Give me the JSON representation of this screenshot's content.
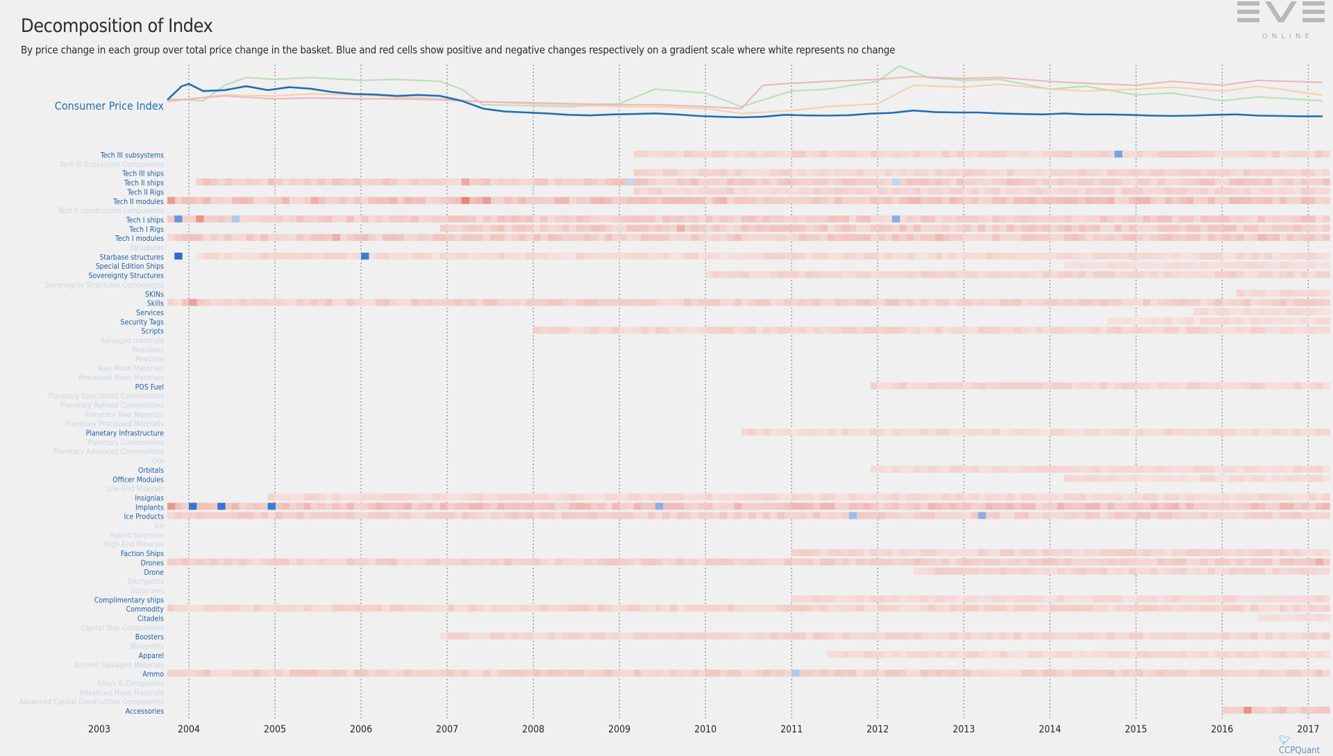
{
  "header": {
    "title": "Decomposition of Index",
    "subtitle": "By price change in each group over total price change in the basket. Blue and red cells show positive and negative changes respectively on a gradient scale where white represents no change"
  },
  "logo": {
    "text": "EVE",
    "sub": "ONLINE"
  },
  "brand": {
    "text": "CCPQuant",
    "icon": "twitter-bird-icon"
  },
  "colors": {
    "background": "#f0f0f0",
    "cpi_line": "#1f6fb5",
    "label_active": "#1f5fa5",
    "label_faded": "#c9d6e4",
    "positive_cell": "#2a6fcf",
    "negative_cell": "#e0564a",
    "faint_negative": "#f4dcd8"
  },
  "chart_data": [
    {
      "type": "line",
      "title": "",
      "label": "Consumer Price Index",
      "x_range": [
        "2003-10",
        "2017-03"
      ],
      "series": [
        {
          "name": "Consumer Price Index",
          "color": "#1f6fb5",
          "x": [
            "2003-10",
            "2003-12",
            "2004-01",
            "2004-03",
            "2004-06",
            "2004-09",
            "2004-12",
            "2005-03",
            "2005-06",
            "2005-09",
            "2005-12",
            "2006-03",
            "2006-06",
            "2006-09",
            "2006-12",
            "2007-03",
            "2007-06",
            "2007-09",
            "2007-12",
            "2008-03",
            "2008-06",
            "2008-09",
            "2008-12",
            "2009-03",
            "2009-06",
            "2009-09",
            "2009-12",
            "2010-03",
            "2010-06",
            "2010-09",
            "2010-12",
            "2011-03",
            "2011-06",
            "2011-09",
            "2011-12",
            "2012-03",
            "2012-06",
            "2012-09",
            "2012-12",
            "2013-03",
            "2013-06",
            "2013-09",
            "2013-12",
            "2014-03",
            "2014-06",
            "2014-09",
            "2014-12",
            "2015-03",
            "2015-06",
            "2015-09",
            "2015-12",
            "2016-03",
            "2016-06",
            "2016-09",
            "2016-12",
            "2017-03"
          ],
          "y": [
            0.15,
            0.85,
            0.97,
            0.6,
            0.65,
            0.85,
            0.65,
            0.8,
            0.72,
            0.55,
            0.45,
            0.42,
            0.35,
            0.4,
            0.35,
            0.1,
            -0.3,
            -0.45,
            -0.5,
            -0.55,
            -0.62,
            -0.65,
            -0.6,
            -0.58,
            -0.55,
            -0.6,
            -0.68,
            -0.72,
            -0.75,
            -0.72,
            -0.62,
            -0.65,
            -0.66,
            -0.64,
            -0.56,
            -0.52,
            -0.4,
            -0.48,
            -0.5,
            -0.5,
            -0.55,
            -0.58,
            -0.6,
            -0.55,
            -0.6,
            -0.6,
            -0.62,
            -0.66,
            -0.68,
            -0.66,
            -0.62,
            -0.6,
            -0.66,
            -0.68,
            -0.7,
            -0.7
          ]
        },
        {
          "name": "",
          "color": "#b6dbb3",
          "x": [
            "2003-10",
            "2004-03",
            "2004-06",
            "2004-09",
            "2005-01",
            "2005-06",
            "2006-01",
            "2006-06",
            "2006-12",
            "2007-03",
            "2007-06",
            "2008-01",
            "2008-06",
            "2009-01",
            "2009-06",
            "2010-01",
            "2010-06",
            "2011-01",
            "2011-06",
            "2012-01",
            "2012-04",
            "2012-08",
            "2013-01",
            "2013-06",
            "2014-01",
            "2014-06",
            "2015-01",
            "2015-06",
            "2016-01",
            "2016-06",
            "2017-03"
          ],
          "y": [
            0.2,
            0.1,
            0.9,
            1.3,
            1.2,
            1.3,
            1.15,
            1.2,
            1.1,
            0.7,
            -0.1,
            -0.15,
            -0.2,
            -0.05,
            0.7,
            0.5,
            -0.2,
            0.6,
            0.7,
            1.1,
            1.9,
            1.3,
            1.15,
            1.2,
            0.7,
            0.85,
            0.4,
            0.5,
            0.1,
            0.3,
            0.1
          ]
        },
        {
          "name": "",
          "color": "#f7cda5",
          "x": [
            "2003-10",
            "2004-06",
            "2005-01",
            "2005-06",
            "2006-01",
            "2006-06",
            "2006-12",
            "2007-06",
            "2008-01",
            "2008-06",
            "2009-01",
            "2009-06",
            "2010-01",
            "2010-06",
            "2011-01",
            "2011-06",
            "2012-01",
            "2012-06",
            "2013-01",
            "2013-06",
            "2014-01",
            "2014-06",
            "2015-01",
            "2015-06",
            "2016-01",
            "2016-06",
            "2017-03"
          ],
          "y": [
            0.05,
            0.4,
            0.35,
            0.45,
            0.4,
            0.3,
            0.2,
            0.05,
            -0.05,
            -0.1,
            -0.2,
            -0.2,
            -0.3,
            -0.55,
            -0.4,
            -0.2,
            -0.05,
            0.9,
            0.8,
            0.95,
            0.7,
            0.6,
            0.7,
            0.8,
            0.6,
            0.85,
            0.4
          ]
        },
        {
          "name": "",
          "color": "#ebb3b6",
          "x": [
            "2003-10",
            "2004-06",
            "2005-01",
            "2005-06",
            "2006-01",
            "2006-06",
            "2006-12",
            "2007-06",
            "2008-01",
            "2008-06",
            "2009-01",
            "2009-06",
            "2010-01",
            "2010-06",
            "2010-09",
            "2011-01",
            "2011-06",
            "2012-01",
            "2012-06",
            "2013-01",
            "2013-06",
            "2014-01",
            "2014-06",
            "2015-01",
            "2015-06",
            "2016-01",
            "2016-06",
            "2017-03"
          ],
          "y": [
            0.1,
            0.35,
            0.2,
            0.25,
            0.2,
            0.2,
            0.15,
            0.05,
            0.0,
            -0.05,
            -0.1,
            -0.1,
            -0.2,
            -0.3,
            0.9,
            1.0,
            1.1,
            1.2,
            1.35,
            1.25,
            1.3,
            1.1,
            1.0,
            0.9,
            1.1,
            0.9,
            1.15,
            1.05
          ]
        }
      ]
    },
    {
      "type": "heatmap",
      "title": "",
      "x_ticks": [
        "2003",
        "2004",
        "2005",
        "2006",
        "2007",
        "2008",
        "2009",
        "2010",
        "2011",
        "2012",
        "2013",
        "2014",
        "2015",
        "2016",
        "2017"
      ],
      "x_range": [
        "2003-10",
        "2017-03"
      ],
      "scale_note": "blue = positive, red = negative, white = no change",
      "rows": [
        {
          "label": "Tech III subsystems",
          "active": true,
          "start": "2009-03",
          "end": "2017-03",
          "intensity": 0.15,
          "spikes": [
            {
              "x": "2014-10",
              "v": 0.6
            }
          ]
        },
        {
          "label": "Tech III Subsystem Components",
          "active": false
        },
        {
          "label": "Tech III ships",
          "active": true,
          "start": "2009-03",
          "end": "2017-03",
          "intensity": 0.15,
          "spikes": []
        },
        {
          "label": "Tech II ships",
          "active": true,
          "start": "2004-02",
          "end": "2017-03",
          "intensity": 0.2,
          "spikes": [
            {
              "x": "2007-03",
              "v": -0.45
            },
            {
              "x": "2009-02",
              "v": 0.2
            },
            {
              "x": "2012-03",
              "v": 0.2
            }
          ]
        },
        {
          "label": "Tech II Rigs",
          "active": true,
          "start": "2009-03",
          "end": "2017-03",
          "intensity": 0.15,
          "spikes": []
        },
        {
          "label": "Tech II modules",
          "active": true,
          "start": "2003-10",
          "end": "2017-03",
          "intensity": 0.25,
          "spikes": [
            {
              "x": "2003-10",
              "v": -0.55
            },
            {
              "x": "2005-06",
              "v": -0.4
            },
            {
              "x": "2007-03",
              "v": -0.7
            },
            {
              "x": "2007-06",
              "v": -0.55
            }
          ]
        },
        {
          "label": "Tech II construction components",
          "active": false
        },
        {
          "label": "Tech I ships",
          "active": true,
          "start": "2003-10",
          "end": "2017-03",
          "intensity": 0.2,
          "spikes": [
            {
              "x": "2003-11",
              "v": 0.7
            },
            {
              "x": "2004-02",
              "v": -0.6
            },
            {
              "x": "2004-07",
              "v": 0.3
            },
            {
              "x": "2012-03",
              "v": 0.5
            }
          ]
        },
        {
          "label": "Tech I Rigs",
          "active": true,
          "start": "2006-12",
          "end": "2017-03",
          "intensity": 0.2,
          "spikes": [
            {
              "x": "2009-09",
              "v": -0.4
            }
          ]
        },
        {
          "label": "Tech I modules",
          "active": true,
          "start": "2003-10",
          "end": "2017-03",
          "intensity": 0.2,
          "spikes": [
            {
              "x": "2005-09",
              "v": -0.4
            },
            {
              "x": "2012-09",
              "v": -0.35
            },
            {
              "x": "2016-06",
              "v": -0.35
            }
          ]
        },
        {
          "label": "Structures",
          "active": false
        },
        {
          "label": "Starbase structures",
          "active": true,
          "start": "2004-02",
          "end": "2017-03",
          "intensity": 0.12,
          "spikes": [
            {
              "x": "2003-11",
              "v": 1.0
            },
            {
              "x": "2006-01",
              "v": 0.9
            }
          ]
        },
        {
          "label": "Special Edition Ships",
          "active": true,
          "start": "2014-03",
          "end": "2017-03",
          "intensity": 0.1,
          "spikes": []
        },
        {
          "label": "Sovereignty Structures",
          "active": true,
          "start": "2010-01",
          "end": "2017-03",
          "intensity": 0.15,
          "spikes": []
        },
        {
          "label": "Sovereignty Structures Components",
          "active": false
        },
        {
          "label": "SKINs",
          "active": true,
          "start": "2016-03",
          "end": "2017-03",
          "intensity": 0.12,
          "spikes": []
        },
        {
          "label": "Skills",
          "active": true,
          "start": "2003-10",
          "end": "2017-03",
          "intensity": 0.18,
          "spikes": [
            {
              "x": "2004-01",
              "v": -0.5
            }
          ]
        },
        {
          "label": "Services",
          "active": true,
          "start": "2015-09",
          "end": "2017-03",
          "intensity": 0.1,
          "spikes": []
        },
        {
          "label": "Security Tags",
          "active": true,
          "start": "2014-09",
          "end": "2017-03",
          "intensity": 0.1,
          "spikes": []
        },
        {
          "label": "Scripts",
          "active": true,
          "start": "2008-01",
          "end": "2017-03",
          "intensity": 0.15,
          "spikes": []
        },
        {
          "label": "Salvaged materials",
          "active": false
        },
        {
          "label": "Reactions",
          "active": false
        },
        {
          "label": "Reaction",
          "active": false
        },
        {
          "label": "Raw Moon Materials",
          "active": false
        },
        {
          "label": "Processed Moon Materials",
          "active": false
        },
        {
          "label": "POS Fuel",
          "active": true,
          "start": "2011-12",
          "end": "2017-03",
          "intensity": 0.15,
          "spikes": []
        },
        {
          "label": "Planetary Specialized Commodities",
          "active": false
        },
        {
          "label": "Planetary Refined Commodities",
          "active": false
        },
        {
          "label": "Planetary Raw Materials",
          "active": false
        },
        {
          "label": "Planetary Processed Materials",
          "active": false
        },
        {
          "label": "Planetary Infrastructure",
          "active": true,
          "start": "2010-06",
          "end": "2017-03",
          "intensity": 0.12,
          "spikes": []
        },
        {
          "label": "Planetary Commodities",
          "active": false
        },
        {
          "label": "Planetary Advanced Commodities",
          "active": false
        },
        {
          "label": "Ore",
          "active": false
        },
        {
          "label": "Orbitals",
          "active": true,
          "start": "2011-12",
          "end": "2017-03",
          "intensity": 0.12,
          "spikes": []
        },
        {
          "label": "Officer Modules",
          "active": true,
          "start": "2014-03",
          "end": "2017-03",
          "intensity": 0.1,
          "spikes": []
        },
        {
          "label": "Low-End Minerals",
          "active": false
        },
        {
          "label": "Insignias",
          "active": true,
          "start": "2004-12",
          "end": "2017-03",
          "intensity": 0.12,
          "spikes": []
        },
        {
          "label": "Implants",
          "active": true,
          "start": "2003-10",
          "end": "2017-03",
          "intensity": 0.25,
          "spikes": [
            {
              "x": "2003-10",
              "v": -0.55
            },
            {
              "x": "2004-01",
              "v": 0.95
            },
            {
              "x": "2004-05",
              "v": 0.95
            },
            {
              "x": "2004-12",
              "v": 0.9
            },
            {
              "x": "2009-06",
              "v": 0.5
            }
          ]
        },
        {
          "label": "Ice Products",
          "active": true,
          "start": "2003-10",
          "end": "2017-03",
          "intensity": 0.18,
          "spikes": [
            {
              "x": "2011-09",
              "v": 0.4
            },
            {
              "x": "2013-03",
              "v": 0.5
            }
          ]
        },
        {
          "label": "Ice",
          "active": false
        },
        {
          "label": "Hybrid polymers",
          "active": false
        },
        {
          "label": "High-End Minerals",
          "active": false
        },
        {
          "label": "Faction Ships",
          "active": true,
          "start": "2011-01",
          "end": "2017-03",
          "intensity": 0.15,
          "spikes": []
        },
        {
          "label": "Drones",
          "active": true,
          "start": "2003-10",
          "end": "2017-03",
          "intensity": 0.18,
          "spikes": [
            {
              "x": "2017-02",
              "v": -0.4
            }
          ]
        },
        {
          "label": "Drone",
          "active": true,
          "start": "2012-06",
          "end": "2017-03",
          "intensity": 0.15,
          "spikes": []
        },
        {
          "label": "Decryptors",
          "active": false
        },
        {
          "label": "Datacores",
          "active": false
        },
        {
          "label": "Complimentary ships",
          "active": true,
          "start": "2011-01",
          "end": "2017-03",
          "intensity": 0.12,
          "spikes": []
        },
        {
          "label": "Commodity",
          "active": true,
          "start": "2003-10",
          "end": "2017-03",
          "intensity": 0.15,
          "spikes": []
        },
        {
          "label": "Citadels",
          "active": true,
          "start": "2016-06",
          "end": "2017-03",
          "intensity": 0.1,
          "spikes": []
        },
        {
          "label": "Capital Ship Components",
          "active": false
        },
        {
          "label": "Boosters",
          "active": true,
          "start": "2006-12",
          "end": "2017-03",
          "intensity": 0.15,
          "spikes": []
        },
        {
          "label": "Blueprints",
          "active": false
        },
        {
          "label": "Apparel",
          "active": true,
          "start": "2011-06",
          "end": "2017-03",
          "intensity": 0.12,
          "spikes": []
        },
        {
          "label": "Ancient Salvaged Materials",
          "active": false
        },
        {
          "label": "Ammo",
          "active": true,
          "start": "2003-10",
          "end": "2017-03",
          "intensity": 0.18,
          "spikes": [
            {
              "x": "2011-01",
              "v": 0.3
            }
          ]
        },
        {
          "label": "Alloys & Composites",
          "active": false
        },
        {
          "label": "Advanced Moon Materials",
          "active": false
        },
        {
          "label": "Advanced Capital Construction Components",
          "active": false
        },
        {
          "label": "Accessories",
          "active": true,
          "start": "2016-01",
          "end": "2017-03",
          "intensity": 0.2,
          "spikes": [
            {
              "x": "2016-04",
              "v": -0.6
            }
          ]
        }
      ]
    }
  ]
}
